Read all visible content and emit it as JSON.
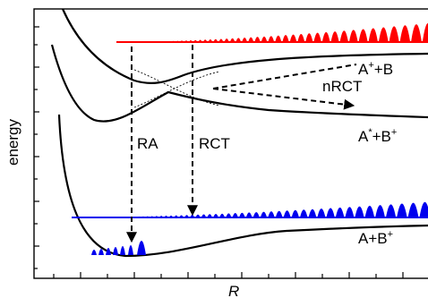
{
  "axes": {
    "ylabel": "energy",
    "xlabel": "R"
  },
  "curves": {
    "upper_right": {
      "base": "A",
      "base_sup": "+",
      "rest": "+B"
    },
    "middle_right": {
      "base": "A",
      "base_sup": "*",
      "rest": "+B",
      "rest_sup": "+"
    },
    "lower_right": {
      "base": "A+B",
      "base_sup": "+"
    }
  },
  "arrows": {
    "ra": "RA",
    "rct": "RCT",
    "nrct": "nRCT"
  },
  "colors": {
    "red_band": "#ff0000",
    "blue_band": "#0000ee",
    "curves": "#000000"
  }
}
